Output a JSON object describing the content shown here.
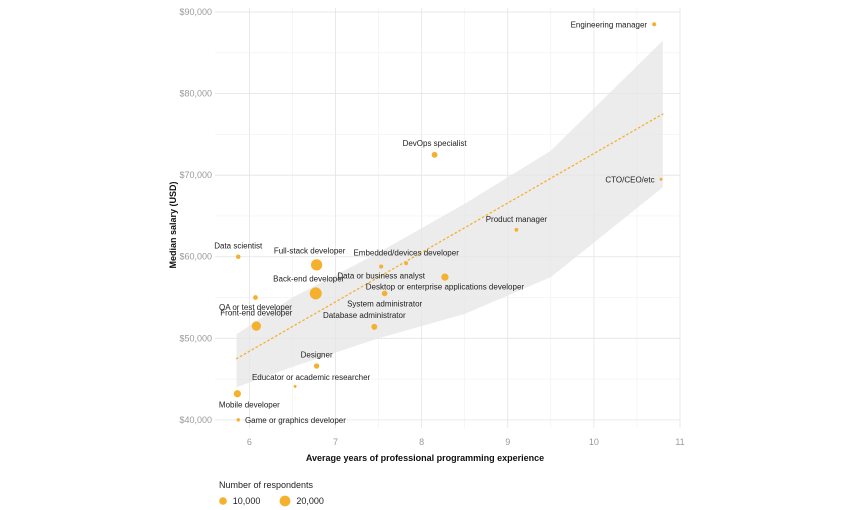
{
  "chart_data": {
    "type": "scatter",
    "xlabel": "Average years of professional programming experience",
    "ylabel": "Median salary (USD)",
    "xlim": [
      5.6,
      11.0
    ],
    "ylim": [
      39000,
      90500
    ],
    "x_ticks": [
      6,
      7,
      8,
      9,
      10,
      11
    ],
    "y_ticks": [
      40000,
      50000,
      60000,
      70000,
      80000,
      90000
    ],
    "x_tick_labels": [
      "6",
      "7",
      "8",
      "9",
      "10",
      "11"
    ],
    "y_tick_labels": [
      "$40,000",
      "$50,000",
      "$60,000",
      "$70,000",
      "$80,000",
      "$90,000"
    ],
    "grid": true,
    "point_color": "#f5b02e",
    "trend_color": "#f5b02e",
    "band_color": "#e6e6e6",
    "trend": {
      "x": [
        5.85,
        10.8
      ],
      "y": [
        47500,
        77500
      ]
    },
    "band": {
      "x": [
        5.85,
        6.5,
        7.5,
        8.5,
        9.5,
        10.8
      ],
      "upper": [
        50500,
        55000,
        60500,
        66500,
        73000,
        86500
      ],
      "lower": [
        44000,
        46500,
        50000,
        53000,
        57500,
        68500
      ]
    },
    "points": [
      {
        "label": "Engineering manager",
        "x": 10.7,
        "y": 88500,
        "respondents": 3000,
        "label_pos": "left"
      },
      {
        "label": "DevOps specialist",
        "x": 8.15,
        "y": 72500,
        "respondents": 6000,
        "label_pos": "above"
      },
      {
        "label": "CTO/CEO/etc",
        "x": 10.78,
        "y": 69500,
        "respondents": 1500,
        "label_pos": "left"
      },
      {
        "label": "Product manager",
        "x": 9.1,
        "y": 63300,
        "respondents": 2500,
        "label_pos": "above"
      },
      {
        "label": "Data scientist",
        "x": 5.87,
        "y": 60000,
        "respondents": 3500,
        "label_pos": "above"
      },
      {
        "label": "Full-stack developer",
        "x": 6.78,
        "y": 59000,
        "respondents": 22000,
        "label_pos": "aboveleft"
      },
      {
        "label": "Embedded/devices developer",
        "x": 7.82,
        "y": 59200,
        "respondents": 2500,
        "label_pos": "above"
      },
      {
        "label": "Data or business analyst",
        "x": 7.53,
        "y": 58800,
        "respondents": 3000,
        "label_pos": "below"
      },
      {
        "label": "Desktop or enterprise applications developer",
        "x": 8.27,
        "y": 57500,
        "respondents": 9000,
        "label_pos": "belowcenter"
      },
      {
        "label": "Back-end developer",
        "x": 6.77,
        "y": 55500,
        "respondents": 25000,
        "label_pos": "aboveleft"
      },
      {
        "label": "System administrator",
        "x": 7.57,
        "y": 55500,
        "respondents": 5500,
        "label_pos": "below"
      },
      {
        "label": "QA or test developer",
        "x": 6.07,
        "y": 55000,
        "respondents": 4000,
        "label_pos": "below"
      },
      {
        "label": "Front-end developer",
        "x": 6.08,
        "y": 51500,
        "respondents": 15000,
        "label_pos": "above"
      },
      {
        "label": "Database administrator",
        "x": 7.45,
        "y": 51400,
        "respondents": 6000,
        "label_pos": "abovecenter"
      },
      {
        "label": "Designer",
        "x": 6.78,
        "y": 46600,
        "respondents": 5000,
        "label_pos": "above"
      },
      {
        "label": "Educator or academic researcher",
        "x": 6.53,
        "y": 44100,
        "respondents": 1500,
        "label_pos": "aboveright"
      },
      {
        "label": "Mobile developer",
        "x": 5.86,
        "y": 43200,
        "respondents": 9000,
        "label_pos": "belowright"
      },
      {
        "label": "Game or graphics developer",
        "x": 5.87,
        "y": 40000,
        "respondents": 2000,
        "label_pos": "right"
      }
    ],
    "legend": {
      "title": "Number of respondents",
      "entries": [
        {
          "label": "10,000",
          "respondents": 10000
        },
        {
          "label": "20,000",
          "respondents": 20000
        }
      ]
    }
  }
}
